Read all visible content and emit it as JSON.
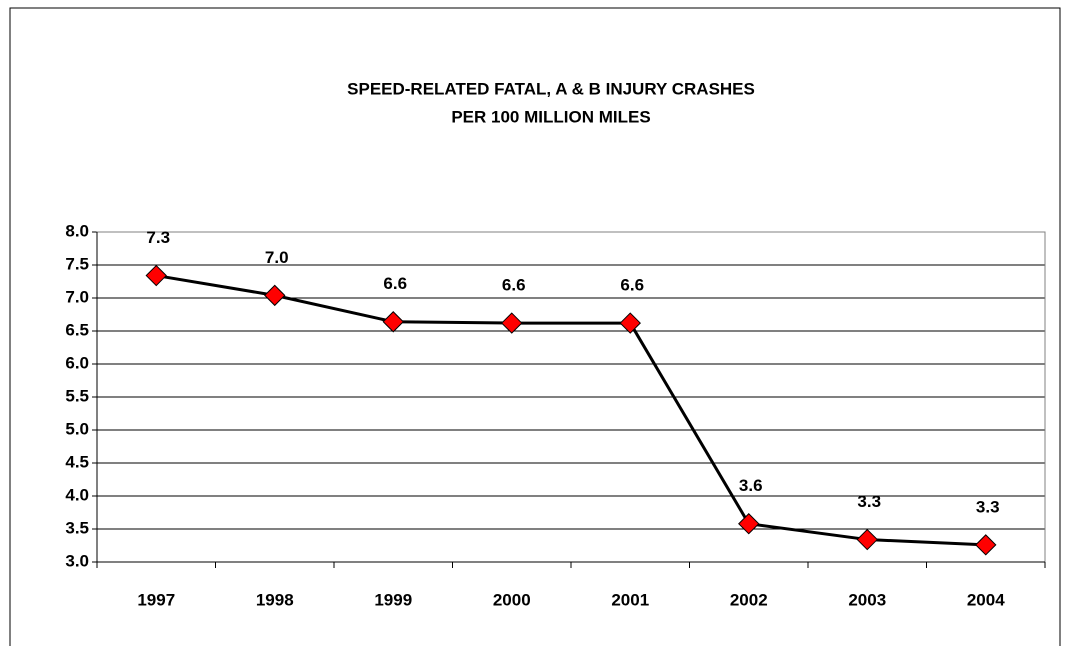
{
  "chart_data": {
    "type": "line",
    "title": "SPEED-RELATED FATAL, A & B INJURY CRASHES",
    "subtitle": "PER 100 MILLION MILES",
    "categories": [
      "1997",
      "1998",
      "1999",
      "2000",
      "2001",
      "2002",
      "2003",
      "2004"
    ],
    "series": [
      {
        "name": "Crashes per 100 million miles",
        "color": "#000000",
        "marker_color": "#ff0000",
        "values": [
          7.34,
          7.04,
          6.64,
          6.62,
          6.62,
          3.58,
          3.34,
          3.26
        ],
        "value_labels": [
          "7.3",
          "7.0",
          "6.6",
          "6.6",
          "6.6",
          "3.6",
          "3.3",
          "3.3"
        ]
      }
    ],
    "ylim": [
      3.0,
      8.0
    ],
    "yticks": [
      {
        "value": 3,
        "label": "3.0"
      },
      3.5,
      {
        "value": 4,
        "label": "4.0"
      },
      4.5,
      {
        "value": 5,
        "label": "5.0"
      },
      5.5,
      {
        "value": 6,
        "label": "6.0"
      },
      6.5,
      {
        "value": 7,
        "label": "7.0"
      },
      7.5,
      {
        "value": 8,
        "label": "8.0"
      }
    ],
    "grid": true
  }
}
